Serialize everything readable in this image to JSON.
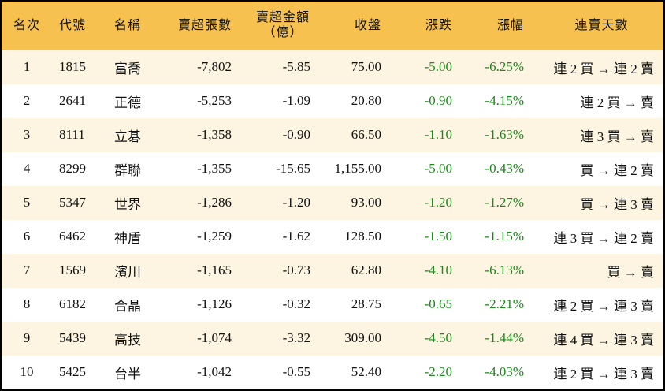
{
  "headers": [
    "名次",
    "代號",
    "名稱",
    "賣超張數",
    "賣超金額（億）",
    "收盤",
    "漲跌",
    "漲幅",
    "連賣天數"
  ],
  "header_amount_line1": "賣超金額",
  "header_amount_line2": "（億）",
  "colors": {
    "header_bg": "#f7c14f",
    "stripe_bg": "#fdf5e2",
    "negative": "#1a8a1a"
  },
  "rows": [
    {
      "rank": "1",
      "code": "1815",
      "name": "富喬",
      "lots": "-7,802",
      "amount": "-5.85",
      "close": "75.00",
      "change": "-5.00",
      "pct": "-6.25%",
      "streak": "連 2 買 → 連 2 賣"
    },
    {
      "rank": "2",
      "code": "2641",
      "name": "正德",
      "lots": "-5,253",
      "amount": "-1.09",
      "close": "20.80",
      "change": "-0.90",
      "pct": "-4.15%",
      "streak": "連 2 買 → 賣"
    },
    {
      "rank": "3",
      "code": "8111",
      "name": "立碁",
      "lots": "-1,358",
      "amount": "-0.90",
      "close": "66.50",
      "change": "-1.10",
      "pct": "-1.63%",
      "streak": "連 3 買 → 賣"
    },
    {
      "rank": "4",
      "code": "8299",
      "name": "群聯",
      "lots": "-1,355",
      "amount": "-15.65",
      "close": "1,155.00",
      "change": "-5.00",
      "pct": "-0.43%",
      "streak": "買 → 連 2 賣"
    },
    {
      "rank": "5",
      "code": "5347",
      "name": "世界",
      "lots": "-1,286",
      "amount": "-1.20",
      "close": "93.00",
      "change": "-1.20",
      "pct": "-1.27%",
      "streak": "買 → 連 3 賣"
    },
    {
      "rank": "6",
      "code": "6462",
      "name": "神盾",
      "lots": "-1,259",
      "amount": "-1.62",
      "close": "128.50",
      "change": "-1.50",
      "pct": "-1.15%",
      "streak": "連 3 買 → 連 2 賣"
    },
    {
      "rank": "7",
      "code": "1569",
      "name": "濱川",
      "lots": "-1,165",
      "amount": "-0.73",
      "close": "62.80",
      "change": "-4.10",
      "pct": "-6.13%",
      "streak": "買 → 賣"
    },
    {
      "rank": "8",
      "code": "6182",
      "name": "合晶",
      "lots": "-1,126",
      "amount": "-0.32",
      "close": "28.75",
      "change": "-0.65",
      "pct": "-2.21%",
      "streak": "連 2 買 → 連 3 賣"
    },
    {
      "rank": "9",
      "code": "5439",
      "name": "高技",
      "lots": "-1,074",
      "amount": "-3.32",
      "close": "309.00",
      "change": "-4.50",
      "pct": "-1.44%",
      "streak": "連 4 買 → 連 3 賣"
    },
    {
      "rank": "10",
      "code": "5425",
      "name": "台半",
      "lots": "-1,042",
      "amount": "-0.55",
      "close": "52.40",
      "change": "-2.20",
      "pct": "-4.03%",
      "streak": "連 2 買 → 連 3 賣"
    }
  ]
}
